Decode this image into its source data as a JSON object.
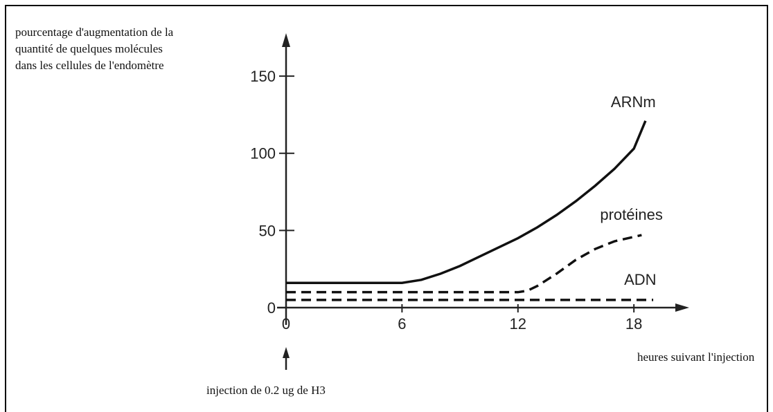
{
  "chart_data": {
    "type": "line",
    "ylabel": [
      "pourcentage d'augmentation de la",
      "quantité de quelques molécules",
      "dans les cellules de l'endomètre"
    ],
    "xlabel": "heures suivant l'injection",
    "annotation": "injection de 0.2 ug de H3",
    "xlim": [
      0,
      20.7
    ],
    "ylim": [
      0,
      177
    ],
    "xticks": [
      0,
      6,
      12,
      18
    ],
    "yticks": [
      0,
      50,
      100,
      150
    ],
    "series": [
      {
        "name": "ARNm",
        "color": "#111111",
        "line_style": "solid",
        "x": [
          0,
          2,
          4,
          6,
          7,
          8,
          9,
          10,
          11,
          12,
          13,
          14,
          15,
          16,
          17,
          18,
          18.6
        ],
        "values": [
          16,
          16,
          16,
          16,
          18,
          22,
          27,
          33,
          39,
          45,
          52,
          60,
          69,
          79,
          90,
          103,
          121
        ]
      },
      {
        "name": "protéines",
        "color": "#111111",
        "line_style": "dashed",
        "x": [
          0,
          12,
          12.5,
          13,
          14,
          15,
          16,
          17,
          18.4
        ],
        "values": [
          10,
          10,
          11,
          14,
          22,
          31,
          38,
          43,
          47
        ]
      },
      {
        "name": "ADN",
        "color": "#111111",
        "line_style": "dashed",
        "x": [
          0,
          19
        ],
        "values": [
          5,
          5
        ]
      }
    ]
  }
}
